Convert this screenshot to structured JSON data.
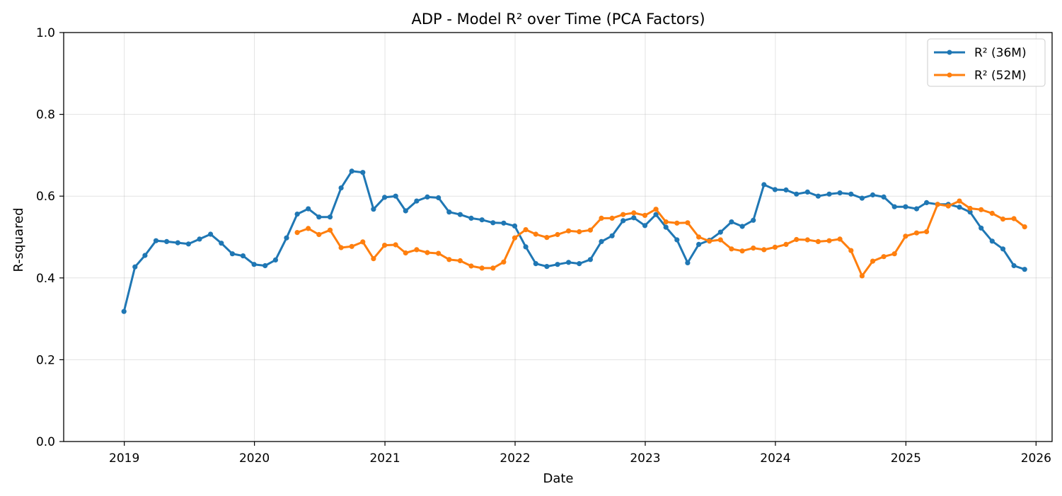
{
  "chart_data": {
    "type": "line",
    "title": "ADP - Model R² over Time (PCA Factors)",
    "xlabel": "Date",
    "ylabel": "R-squared",
    "ylim": [
      0,
      1
    ],
    "xlim": [
      "2018-07-15",
      "2026-02-15"
    ],
    "x_ticks": [
      "2019",
      "2020",
      "2021",
      "2022",
      "2023",
      "2024",
      "2025",
      "2026"
    ],
    "y_ticks": [
      "0.0",
      "0.2",
      "0.4",
      "0.6",
      "0.8",
      "1.0"
    ],
    "grid": true,
    "legend_position": "top-right",
    "series": [
      {
        "name": "R² (36M)",
        "color": "#1f77b4",
        "points": [
          [
            "2018-12",
            0.318
          ],
          [
            "2019-01",
            0.427
          ],
          [
            "2019-02",
            0.455
          ],
          [
            "2019-03",
            0.491
          ],
          [
            "2019-04",
            0.489
          ],
          [
            "2019-05",
            0.486
          ],
          [
            "2019-06",
            0.483
          ],
          [
            "2019-07",
            0.495
          ],
          [
            "2019-08",
            0.507
          ],
          [
            "2019-09",
            0.485
          ],
          [
            "2019-10",
            0.459
          ],
          [
            "2019-11",
            0.454
          ],
          [
            "2019-12",
            0.433
          ],
          [
            "2020-01",
            0.43
          ],
          [
            "2020-02",
            0.444
          ],
          [
            "2020-03",
            0.498
          ],
          [
            "2020-04",
            0.556
          ],
          [
            "2020-05",
            0.569
          ],
          [
            "2020-06",
            0.549
          ],
          [
            "2020-07",
            0.549
          ],
          [
            "2020-08",
            0.62
          ],
          [
            "2020-09",
            0.661
          ],
          [
            "2020-10",
            0.658
          ],
          [
            "2020-11",
            0.568
          ],
          [
            "2020-12",
            0.597
          ],
          [
            "2021-01",
            0.6
          ],
          [
            "2021-02",
            0.564
          ],
          [
            "2021-03",
            0.588
          ],
          [
            "2021-04",
            0.598
          ],
          [
            "2021-05",
            0.596
          ],
          [
            "2021-06",
            0.561
          ],
          [
            "2021-07",
            0.555
          ],
          [
            "2021-08",
            0.546
          ],
          [
            "2021-09",
            0.542
          ],
          [
            "2021-10",
            0.535
          ],
          [
            "2021-11",
            0.534
          ],
          [
            "2021-12",
            0.527
          ],
          [
            "2022-01",
            0.476
          ],
          [
            "2022-02",
            0.435
          ],
          [
            "2022-03",
            0.428
          ],
          [
            "2022-04",
            0.433
          ],
          [
            "2022-05",
            0.438
          ],
          [
            "2022-06",
            0.435
          ],
          [
            "2022-07",
            0.445
          ],
          [
            "2022-08",
            0.489
          ],
          [
            "2022-09",
            0.503
          ],
          [
            "2022-10",
            0.54
          ],
          [
            "2022-11",
            0.547
          ],
          [
            "2022-12",
            0.528
          ],
          [
            "2023-01",
            0.555
          ],
          [
            "2023-02",
            0.524
          ],
          [
            "2023-03",
            0.493
          ],
          [
            "2023-04",
            0.437
          ],
          [
            "2023-05",
            0.482
          ],
          [
            "2023-06",
            0.492
          ],
          [
            "2023-07",
            0.512
          ],
          [
            "2023-08",
            0.537
          ],
          [
            "2023-09",
            0.526
          ],
          [
            "2023-10",
            0.541
          ],
          [
            "2023-11",
            0.628
          ],
          [
            "2023-12",
            0.616
          ],
          [
            "2024-01",
            0.615
          ],
          [
            "2024-02",
            0.605
          ],
          [
            "2024-03",
            0.61
          ],
          [
            "2024-04",
            0.6
          ],
          [
            "2024-05",
            0.605
          ],
          [
            "2024-06",
            0.608
          ],
          [
            "2024-07",
            0.605
          ],
          [
            "2024-08",
            0.595
          ],
          [
            "2024-09",
            0.603
          ],
          [
            "2024-10",
            0.598
          ],
          [
            "2024-11",
            0.574
          ],
          [
            "2024-12",
            0.574
          ],
          [
            "2025-01",
            0.569
          ],
          [
            "2025-02",
            0.584
          ],
          [
            "2025-03",
            0.58
          ],
          [
            "2025-04",
            0.58
          ],
          [
            "2025-05",
            0.573
          ],
          [
            "2025-06",
            0.561
          ],
          [
            "2025-07",
            0.522
          ],
          [
            "2025-08",
            0.49
          ],
          [
            "2025-09",
            0.471
          ],
          [
            "2025-10",
            0.43
          ],
          [
            "2025-11",
            0.421
          ]
        ]
      },
      {
        "name": "R² (52M)",
        "color": "#ff7f0e",
        "points": [
          [
            "2020-04",
            0.511
          ],
          [
            "2020-05",
            0.521
          ],
          [
            "2020-06",
            0.506
          ],
          [
            "2020-07",
            0.517
          ],
          [
            "2020-08",
            0.474
          ],
          [
            "2020-09",
            0.477
          ],
          [
            "2020-10",
            0.488
          ],
          [
            "2020-11",
            0.447
          ],
          [
            "2020-12",
            0.48
          ],
          [
            "2021-01",
            0.481
          ],
          [
            "2021-02",
            0.461
          ],
          [
            "2021-03",
            0.469
          ],
          [
            "2021-04",
            0.462
          ],
          [
            "2021-05",
            0.46
          ],
          [
            "2021-06",
            0.445
          ],
          [
            "2021-07",
            0.442
          ],
          [
            "2021-08",
            0.429
          ],
          [
            "2021-09",
            0.424
          ],
          [
            "2021-10",
            0.424
          ],
          [
            "2021-11",
            0.439
          ],
          [
            "2021-12",
            0.498
          ],
          [
            "2022-01",
            0.518
          ],
          [
            "2022-02",
            0.507
          ],
          [
            "2022-03",
            0.499
          ],
          [
            "2022-04",
            0.506
          ],
          [
            "2022-05",
            0.515
          ],
          [
            "2022-06",
            0.513
          ],
          [
            "2022-07",
            0.517
          ],
          [
            "2022-08",
            0.546
          ],
          [
            "2022-09",
            0.546
          ],
          [
            "2022-10",
            0.555
          ],
          [
            "2022-11",
            0.559
          ],
          [
            "2022-12",
            0.553
          ],
          [
            "2023-01",
            0.568
          ],
          [
            "2023-02",
            0.537
          ],
          [
            "2023-03",
            0.534
          ],
          [
            "2023-04",
            0.535
          ],
          [
            "2023-05",
            0.5
          ],
          [
            "2023-06",
            0.49
          ],
          [
            "2023-07",
            0.493
          ],
          [
            "2023-08",
            0.471
          ],
          [
            "2023-09",
            0.466
          ],
          [
            "2023-10",
            0.473
          ],
          [
            "2023-11",
            0.469
          ],
          [
            "2023-12",
            0.475
          ],
          [
            "2024-01",
            0.482
          ],
          [
            "2024-02",
            0.494
          ],
          [
            "2024-03",
            0.493
          ],
          [
            "2024-04",
            0.489
          ],
          [
            "2024-05",
            0.491
          ],
          [
            "2024-06",
            0.495
          ],
          [
            "2024-07",
            0.467
          ],
          [
            "2024-08",
            0.405
          ],
          [
            "2024-09",
            0.441
          ],
          [
            "2024-10",
            0.452
          ],
          [
            "2024-11",
            0.459
          ],
          [
            "2024-12",
            0.502
          ],
          [
            "2025-01",
            0.51
          ],
          [
            "2025-02",
            0.513
          ],
          [
            "2025-03",
            0.58
          ],
          [
            "2025-04",
            0.576
          ],
          [
            "2025-05",
            0.588
          ],
          [
            "2025-06",
            0.57
          ],
          [
            "2025-07",
            0.567
          ],
          [
            "2025-08",
            0.558
          ],
          [
            "2025-09",
            0.544
          ],
          [
            "2025-10",
            0.545
          ],
          [
            "2025-11",
            0.525
          ]
        ]
      }
    ]
  }
}
